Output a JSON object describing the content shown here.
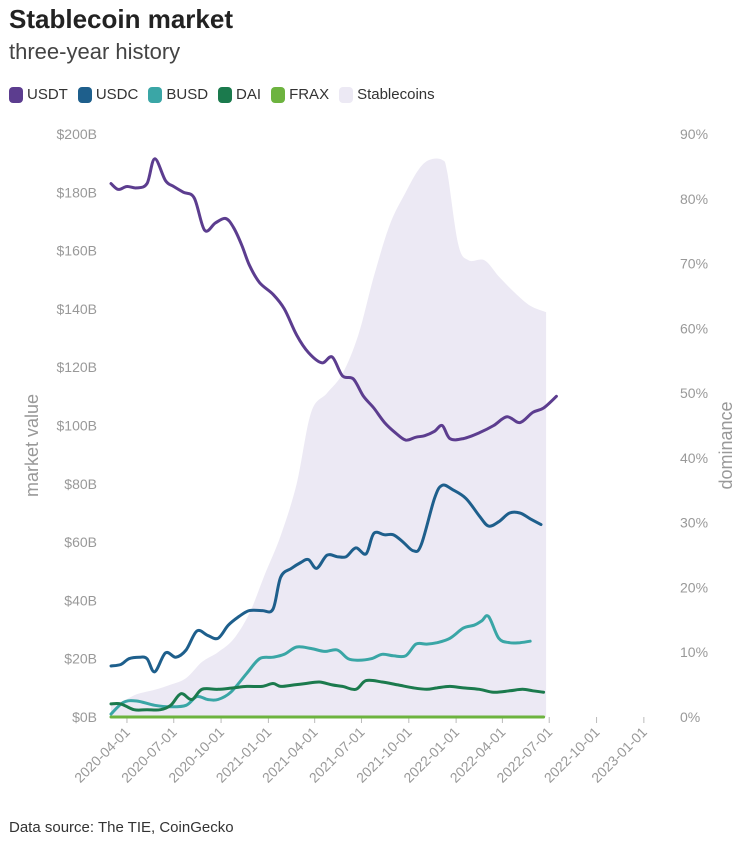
{
  "header": {
    "title": "Stablecoin market",
    "subtitle": "three-year history"
  },
  "footer": {
    "source": "Data source: The TIE, CoinGecko"
  },
  "chart_data": {
    "type": "line",
    "title": "Stablecoin market",
    "subtitle": "three-year history",
    "ylabel": "market value",
    "y2label": "dominance",
    "ylim": [
      0,
      200
    ],
    "y2lim": [
      0,
      90
    ],
    "y_ticks": [
      "$0B",
      "$20B",
      "$40B",
      "$60B",
      "$80B",
      "$100B",
      "$120B",
      "$140B",
      "$160B",
      "$180B",
      "$200B"
    ],
    "y2_ticks": [
      "0%",
      "10%",
      "20%",
      "30%",
      "40%",
      "50%",
      "60%",
      "70%",
      "80%",
      "90%"
    ],
    "x_ticks": [
      "2020-04-01",
      "2020-07-01",
      "2020-10-01",
      "2021-01-01",
      "2021-04-01",
      "2021-07-01",
      "2021-10-01",
      "2022-01-01",
      "2022-04-01",
      "2022-07-01",
      "2022-10-01",
      "2023-01-01"
    ],
    "xlim": [
      "2020-03-01",
      "2023-02-15"
    ],
    "legend_position": "top-left",
    "grid": false,
    "series": [
      {
        "name": "USDT",
        "color": "#5c3d8f",
        "axis": "left",
        "points": [
          [
            "2020-03-01",
            183
          ],
          [
            "2020-03-15",
            181
          ],
          [
            "2020-04-01",
            182
          ],
          [
            "2020-04-20",
            181.5
          ],
          [
            "2020-05-10",
            183
          ],
          [
            "2020-05-25",
            191.5
          ],
          [
            "2020-06-15",
            184
          ],
          [
            "2020-07-01",
            182
          ],
          [
            "2020-07-20",
            180
          ],
          [
            "2020-08-10",
            178
          ],
          [
            "2020-08-30",
            167
          ],
          [
            "2020-09-20",
            169.5
          ],
          [
            "2020-10-10",
            171
          ],
          [
            "2020-10-25",
            168
          ],
          [
            "2020-11-10",
            162
          ],
          [
            "2020-11-25",
            155
          ],
          [
            "2020-12-15",
            149
          ],
          [
            "2021-01-10",
            145
          ],
          [
            "2021-02-01",
            140
          ],
          [
            "2021-02-25",
            131
          ],
          [
            "2021-03-20",
            125
          ],
          [
            "2021-04-15",
            121.5
          ],
          [
            "2021-05-05",
            123.5
          ],
          [
            "2021-05-25",
            117
          ],
          [
            "2021-06-15",
            116
          ],
          [
            "2021-07-05",
            110
          ],
          [
            "2021-07-25",
            106
          ],
          [
            "2021-08-15",
            101
          ],
          [
            "2021-09-05",
            97.5
          ],
          [
            "2021-09-25",
            95
          ],
          [
            "2021-10-15",
            96
          ],
          [
            "2021-11-01",
            96.5
          ],
          [
            "2021-11-20",
            98
          ],
          [
            "2021-12-05",
            100
          ],
          [
            "2021-12-20",
            95.5
          ],
          [
            "2022-01-15",
            95.5
          ],
          [
            "2022-02-15",
            97.5
          ],
          [
            "2022-03-15",
            100
          ],
          [
            "2022-04-10",
            103
          ],
          [
            "2022-05-05",
            101
          ],
          [
            "2022-05-30",
            104.5
          ],
          [
            "2022-06-20",
            106
          ],
          [
            "2022-07-15",
            110
          ]
        ]
      },
      {
        "name": "USDC",
        "color": "#1e5f8c",
        "axis": "left",
        "points": [
          [
            "2020-03-01",
            17.5
          ],
          [
            "2020-03-20",
            18
          ],
          [
            "2020-04-05",
            20
          ],
          [
            "2020-04-25",
            20.5
          ],
          [
            "2020-05-10",
            20
          ],
          [
            "2020-05-25",
            15.5
          ],
          [
            "2020-06-15",
            22
          ],
          [
            "2020-07-05",
            20.5
          ],
          [
            "2020-07-25",
            23
          ],
          [
            "2020-08-15",
            29.5
          ],
          [
            "2020-09-05",
            28
          ],
          [
            "2020-09-25",
            27
          ],
          [
            "2020-10-15",
            31.5
          ],
          [
            "2020-11-05",
            34.5
          ],
          [
            "2020-11-25",
            36.5
          ],
          [
            "2020-12-20",
            36.5
          ],
          [
            "2021-01-10",
            37
          ],
          [
            "2021-01-25",
            48
          ],
          [
            "2021-02-15",
            51
          ],
          [
            "2021-03-05",
            53
          ],
          [
            "2021-03-20",
            54
          ],
          [
            "2021-04-05",
            51
          ],
          [
            "2021-04-25",
            55.5
          ],
          [
            "2021-05-15",
            55
          ],
          [
            "2021-06-01",
            55
          ],
          [
            "2021-06-20",
            58
          ],
          [
            "2021-07-10",
            56
          ],
          [
            "2021-07-25",
            63
          ],
          [
            "2021-08-15",
            62.5
          ],
          [
            "2021-09-01",
            62.5
          ],
          [
            "2021-09-20",
            60
          ],
          [
            "2021-10-10",
            57
          ],
          [
            "2021-10-25",
            59
          ],
          [
            "2021-11-20",
            75
          ],
          [
            "2021-12-05",
            79.5
          ],
          [
            "2021-12-25",
            78
          ],
          [
            "2022-01-20",
            75
          ],
          [
            "2022-02-15",
            69
          ],
          [
            "2022-03-05",
            65.5
          ],
          [
            "2022-03-25",
            67
          ],
          [
            "2022-04-15",
            70
          ],
          [
            "2022-05-05",
            70
          ],
          [
            "2022-05-25",
            68
          ],
          [
            "2022-06-15",
            66
          ]
        ]
      },
      {
        "name": "BUSD",
        "color": "#3aa6a6",
        "axis": "left",
        "points": [
          [
            "2020-03-01",
            1
          ],
          [
            "2020-03-25",
            5
          ],
          [
            "2020-04-20",
            5.5
          ],
          [
            "2020-05-25",
            4
          ],
          [
            "2020-06-25",
            3.5
          ],
          [
            "2020-07-25",
            4
          ],
          [
            "2020-08-15",
            7
          ],
          [
            "2020-09-05",
            6
          ],
          [
            "2020-09-25",
            6
          ],
          [
            "2020-10-20",
            8.5
          ],
          [
            "2020-11-20",
            15
          ],
          [
            "2020-12-15",
            20
          ],
          [
            "2021-01-10",
            20.5
          ],
          [
            "2021-02-01",
            21.5
          ],
          [
            "2021-02-25",
            24
          ],
          [
            "2021-03-25",
            23.5
          ],
          [
            "2021-04-20",
            22.5
          ],
          [
            "2021-05-15",
            23
          ],
          [
            "2021-06-05",
            20
          ],
          [
            "2021-06-25",
            19.5
          ],
          [
            "2021-07-20",
            20
          ],
          [
            "2021-08-10",
            21.5
          ],
          [
            "2021-09-01",
            21
          ],
          [
            "2021-09-25",
            21
          ],
          [
            "2021-10-15",
            25
          ],
          [
            "2021-11-05",
            25
          ],
          [
            "2021-11-25",
            25.5
          ],
          [
            "2021-12-20",
            27
          ],
          [
            "2022-01-15",
            30.5
          ],
          [
            "2022-02-05",
            31.5
          ],
          [
            "2022-02-20",
            33
          ],
          [
            "2022-03-05",
            34.5
          ],
          [
            "2022-03-25",
            27
          ],
          [
            "2022-04-15",
            25.5
          ],
          [
            "2022-05-05",
            25.5
          ],
          [
            "2022-05-25",
            26
          ]
        ]
      },
      {
        "name": "DAI",
        "color": "#1b7a4d",
        "axis": "left",
        "points": [
          [
            "2020-03-01",
            4.5
          ],
          [
            "2020-03-20",
            4.5
          ],
          [
            "2020-04-15",
            2.5
          ],
          [
            "2020-05-10",
            2.5
          ],
          [
            "2020-06-05",
            2.5
          ],
          [
            "2020-06-25",
            4
          ],
          [
            "2020-07-15",
            8
          ],
          [
            "2020-08-05",
            6
          ],
          [
            "2020-08-25",
            9.5
          ],
          [
            "2020-09-25",
            9.5
          ],
          [
            "2020-10-25",
            10
          ],
          [
            "2020-11-20",
            10.5
          ],
          [
            "2020-12-20",
            10.5
          ],
          [
            "2021-01-10",
            11.5
          ],
          [
            "2021-01-25",
            10.5
          ],
          [
            "2021-02-20",
            11
          ],
          [
            "2021-03-15",
            11.5
          ],
          [
            "2021-04-10",
            12
          ],
          [
            "2021-05-05",
            11
          ],
          [
            "2021-05-25",
            10.5
          ],
          [
            "2021-06-20",
            9.5
          ],
          [
            "2021-07-10",
            12.5
          ],
          [
            "2021-08-10",
            12
          ],
          [
            "2021-09-10",
            11
          ],
          [
            "2021-10-10",
            10
          ],
          [
            "2021-11-05",
            9.5
          ],
          [
            "2021-11-25",
            10
          ],
          [
            "2021-12-20",
            10.5
          ],
          [
            "2022-01-15",
            10
          ],
          [
            "2022-02-15",
            9.5
          ],
          [
            "2022-03-15",
            8.5
          ],
          [
            "2022-04-15",
            9
          ],
          [
            "2022-05-10",
            9.5
          ],
          [
            "2022-05-30",
            9
          ],
          [
            "2022-06-20",
            8.5
          ]
        ]
      },
      {
        "name": "FRAX",
        "color": "#6db33f",
        "axis": "left",
        "points": [
          [
            "2020-03-01",
            0
          ],
          [
            "2020-12-01",
            0
          ],
          [
            "2021-06-01",
            0
          ],
          [
            "2022-01-01",
            0
          ],
          [
            "2022-06-20",
            0
          ]
        ]
      },
      {
        "name": "Stablecoins",
        "color": "#ece9f4",
        "axis": "right",
        "kind": "area",
        "points": [
          [
            "2020-03-01",
            2
          ],
          [
            "2020-03-25",
            2.5
          ],
          [
            "2020-04-20",
            3.5
          ],
          [
            "2020-05-25",
            4.2
          ],
          [
            "2020-06-25",
            5
          ],
          [
            "2020-07-25",
            6
          ],
          [
            "2020-08-25",
            8.5
          ],
          [
            "2020-09-25",
            10
          ],
          [
            "2020-10-25",
            12
          ],
          [
            "2020-11-25",
            16
          ],
          [
            "2020-12-25",
            22
          ],
          [
            "2021-01-25",
            28
          ],
          [
            "2021-02-25",
            36
          ],
          [
            "2021-03-25",
            47
          ],
          [
            "2021-04-25",
            50
          ],
          [
            "2021-05-25",
            53
          ],
          [
            "2021-06-25",
            59
          ],
          [
            "2021-07-25",
            68
          ],
          [
            "2021-08-25",
            76
          ],
          [
            "2021-09-25",
            81
          ],
          [
            "2021-10-20",
            84.5
          ],
          [
            "2021-11-10",
            86
          ],
          [
            "2021-12-05",
            86
          ],
          [
            "2021-12-15",
            84
          ],
          [
            "2022-01-05",
            73
          ],
          [
            "2022-01-25",
            70.5
          ],
          [
            "2022-02-25",
            70.5
          ],
          [
            "2022-03-25",
            68
          ],
          [
            "2022-04-25",
            65.5
          ],
          [
            "2022-05-25",
            63.5
          ],
          [
            "2022-06-25",
            62.5
          ]
        ]
      }
    ]
  }
}
